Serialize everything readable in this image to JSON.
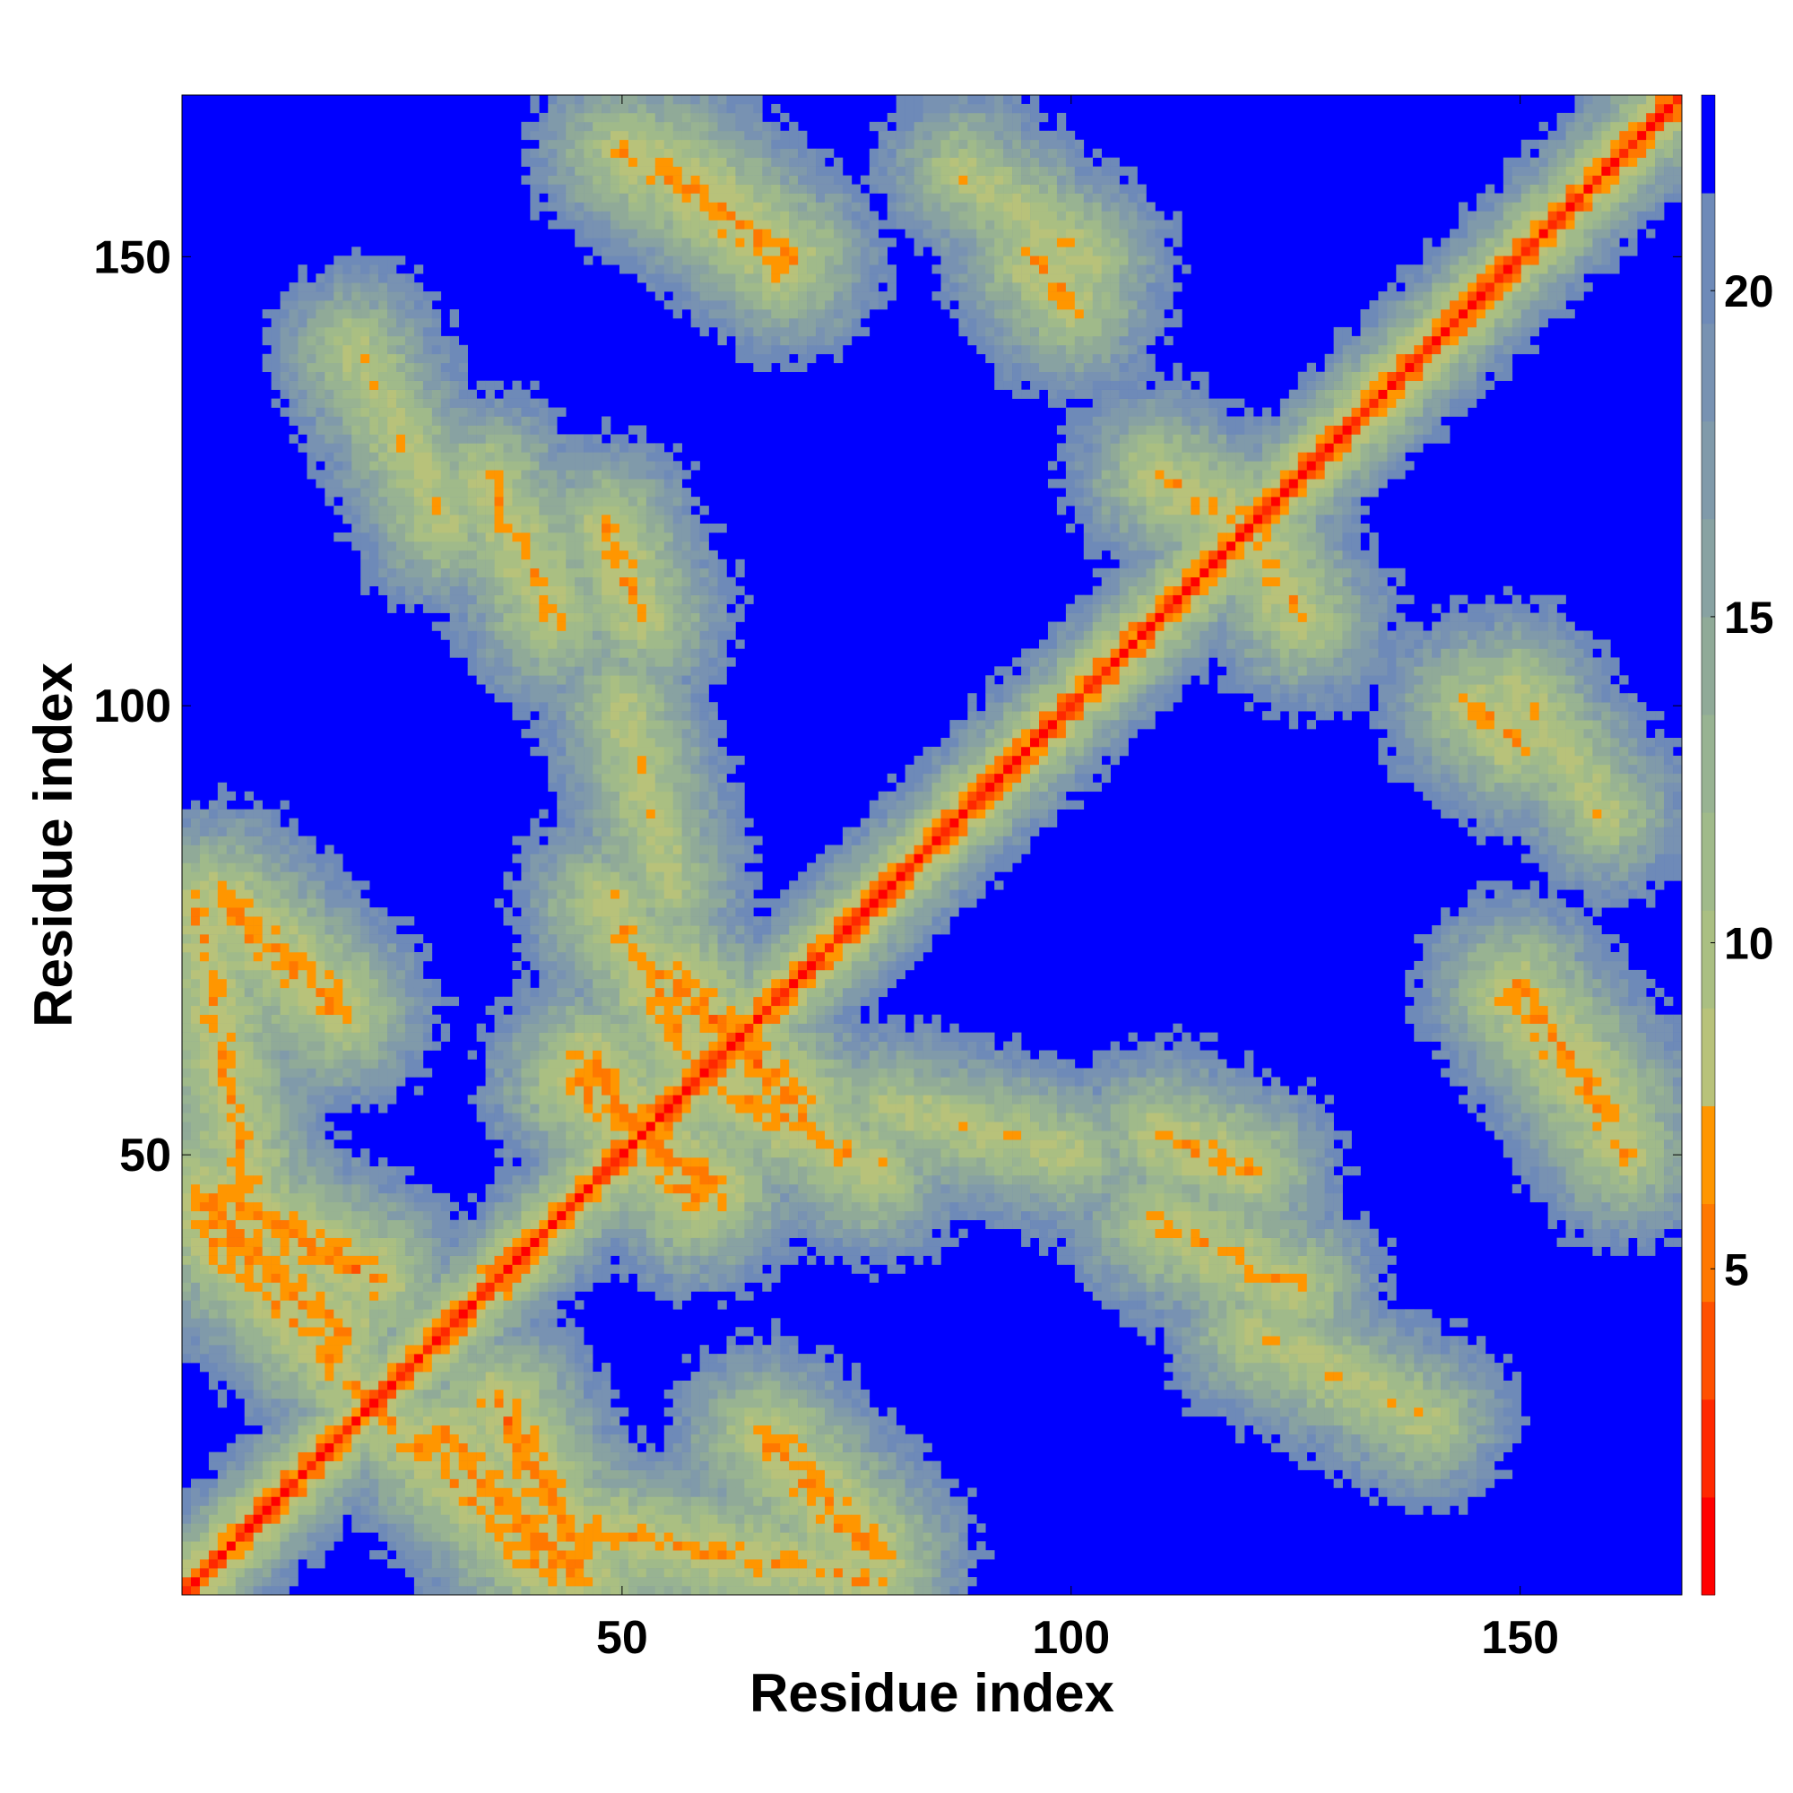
{
  "chart_data": {
    "type": "heatmap",
    "title": "",
    "xlabel": "Residue index",
    "ylabel": "Residue index",
    "n_residues": 168,
    "xlim": [
      1,
      168
    ],
    "ylim": [
      1,
      168
    ],
    "x_ticks": [
      50,
      100,
      150
    ],
    "y_ticks": [
      50,
      100,
      150
    ],
    "x_tick_labels": [
      "50",
      "100",
      "150"
    ],
    "y_tick_labels": [
      "50",
      "100",
      "150"
    ],
    "colorbar": {
      "range": [
        0,
        23
      ],
      "ticks": [
        5,
        10,
        15,
        20
      ],
      "tick_labels": [
        "5",
        "10",
        "15",
        "20"
      ],
      "levels": [
        {
          "max": 1.5,
          "color": "#ff0000"
        },
        {
          "max": 3,
          "color": "#ff2800"
        },
        {
          "max": 4.5,
          "color": "#ff5000"
        },
        {
          "max": 6,
          "color": "#ff7800"
        },
        {
          "max": 7.5,
          "color": "#ff9600"
        },
        {
          "max": 9,
          "color": "#b8c27a"
        },
        {
          "max": 10.5,
          "color": "#aabf82"
        },
        {
          "max": 12,
          "color": "#a0ba8a"
        },
        {
          "max": 13.5,
          "color": "#98b392"
        },
        {
          "max": 15,
          "color": "#90aa98"
        },
        {
          "max": 16.5,
          "color": "#88a2a2"
        },
        {
          "max": 18,
          "color": "#809aaa"
        },
        {
          "max": 19.5,
          "color": "#7892b2"
        },
        {
          "max": 21.5,
          "color": "#6e8ab8"
        },
        {
          "max": 23,
          "color": "#0000ff"
        }
      ]
    },
    "background_color": "#0000ff",
    "grid": false,
    "description_of_values": "pairwise residue distance map; low values along diagonal, high values (>21) as blue background",
    "contact_segments": [
      {
        "i": [
          1,
          168
        ],
        "j": [
          1,
          168
        ],
        "offset": 0,
        "value": 1
      },
      {
        "i": [
          2,
          168
        ],
        "j": [
          1,
          167
        ],
        "offset": 1,
        "value": 4
      },
      {
        "i": [
          6,
          42
        ],
        "j": [
          38,
          2
        ],
        "value": 7
      },
      {
        "i": [
          30,
          45
        ],
        "j": [
          18,
          2
        ],
        "value": 6
      },
      {
        "i": [
          45,
          78
        ],
        "j": [
          8,
          2
        ],
        "value": 7
      },
      {
        "i": [
          60,
          78
        ],
        "j": [
          58,
          48
        ],
        "value": 7
      },
      {
        "i": [
          46,
          58
        ],
        "j": [
          60,
          45
        ],
        "value": 6
      },
      {
        "i": [
          55,
          65
        ],
        "j": [
          70,
          60
        ],
        "value": 6
      },
      {
        "i": [
          5,
          18
        ],
        "j": [
          78,
          66
        ],
        "value": 6
      },
      {
        "i": [
          5,
          22
        ],
        "j": [
          45,
          36
        ],
        "value": 6
      },
      {
        "i": [
          110,
          125
        ],
        "j": [
          42,
          35
        ],
        "value": 7
      },
      {
        "i": [
          150,
          160
        ],
        "j": [
          68,
          55
        ],
        "value": 6
      },
      {
        "i": [
          150,
          160
        ],
        "j": [
          102,
          88
        ],
        "value": 8
      },
      {
        "i": [
          50,
          62
        ],
        "j": [
          162,
          155
        ],
        "value": 7
      },
      {
        "i": [
          96,
          100
        ],
        "j": [
          150,
          145
        ],
        "value": 7
      },
      {
        "i": [
          118,
          126
        ],
        "j": [
          122,
          110
        ],
        "value": 7
      },
      {
        "i": [
          110,
          120
        ],
        "j": [
          52,
          48
        ],
        "value": 7
      },
      {
        "i": [
          20,
          30
        ],
        "j": [
          140,
          120
        ],
        "value": 8
      },
      {
        "i": [
          80,
          100
        ],
        "j": [
          55,
          50
        ],
        "value": 8
      }
    ]
  }
}
